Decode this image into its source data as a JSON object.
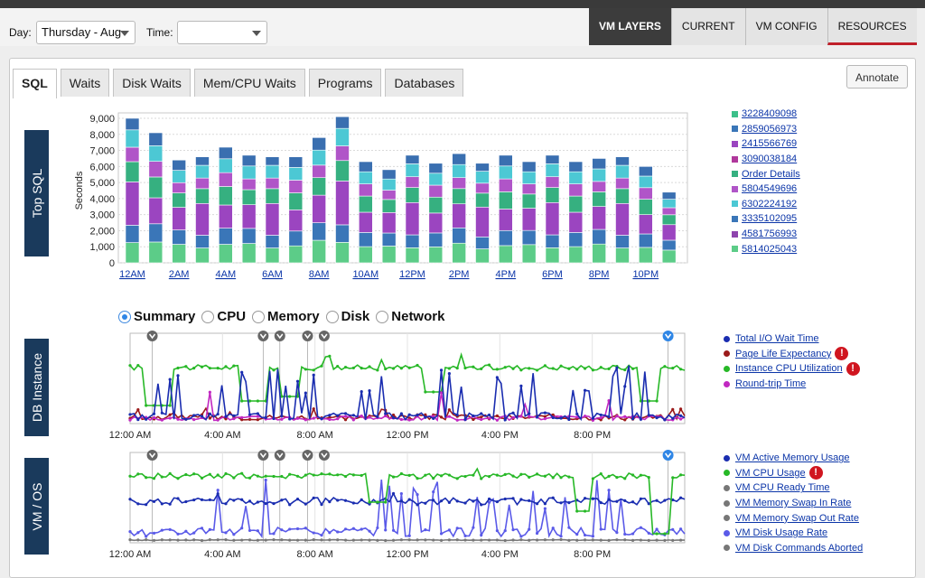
{
  "controls": {
    "day_label": "Day:",
    "day_value": "Thursday - Aug",
    "time_label": "Time:",
    "time_value": ""
  },
  "right_tabs": [
    {
      "label": "VM LAYERS"
    },
    {
      "label": "CURRENT"
    },
    {
      "label": "VM CONFIG"
    },
    {
      "label": "RESOURCES"
    }
  ],
  "tabs": [
    {
      "label": "SQL"
    },
    {
      "label": "Waits"
    },
    {
      "label": "Disk Waits"
    },
    {
      "label": "Mem/CPU Waits"
    },
    {
      "label": "Programs"
    },
    {
      "label": "Databases"
    }
  ],
  "annotate_label": "Annotate",
  "colors": {
    "accent_dark": "#1a3a5c",
    "link": "#0b35a8",
    "warning": "#d0151f",
    "active_tab_underline": "#c0202a"
  },
  "top_sql": {
    "side_label": "Top SQL",
    "legend": [
      {
        "label": "3228409098",
        "color": "#3cc08a"
      },
      {
        "label": "2859056973",
        "color": "#3a76b8"
      },
      {
        "label": "2415566769",
        "color": "#9b45c0"
      },
      {
        "label": "3090038184",
        "color": "#b0389c"
      },
      {
        "label": "Order Details",
        "color": "#36b080"
      },
      {
        "label": "5804549696",
        "color": "#b055c8"
      },
      {
        "label": "6302224192",
        "color": "#4cc8d4"
      },
      {
        "label": "3335102095",
        "color": "#3a76b8"
      },
      {
        "label": "4581756993",
        "color": "#8e44ad"
      },
      {
        "label": "5814025043",
        "color": "#5ccc88"
      }
    ]
  },
  "chart_data": [
    {
      "type": "bar",
      "ylabel": "Seconds",
      "ylim": [
        0,
        9000
      ],
      "yticks": [
        "9,000",
        "8,000",
        "7,000",
        "6,000",
        "5,000",
        "4,000",
        "3,000",
        "2,000",
        "1,000",
        "0"
      ],
      "xticks": [
        "12AM",
        "2AM",
        "4AM",
        "6AM",
        "8AM",
        "10AM",
        "12PM",
        "2PM",
        "4PM",
        "6PM",
        "8PM",
        "10PM"
      ],
      "totals": [
        9000,
        8100,
        6400,
        6600,
        7200,
        6700,
        6600,
        6600,
        7800,
        9100,
        6300,
        5800,
        6700,
        6200,
        6800,
        6200,
        6700,
        6300,
        6700,
        6300,
        6500,
        6600,
        6000,
        4400
      ],
      "series_colors": [
        "#5ccc88",
        "#3a76b8",
        "#9b45c0",
        "#36b080",
        "#b055c8",
        "#4cc8d4",
        "#3a6fb0",
        "#8e44ad",
        "#8fd06c"
      ]
    },
    {
      "type": "line",
      "side_label": "DB Instance",
      "xticks": [
        "12:00 AM",
        "4:00 AM",
        "8:00 AM",
        "12:00 PM",
        "4:00 PM",
        "8:00 PM"
      ],
      "series": [
        {
          "name": "Total I/O Wait Time",
          "color": "#1a2db0",
          "warning": false
        },
        {
          "name": "Page Life Expectancy",
          "color": "#9b1a1a",
          "warning": true
        },
        {
          "name": "Instance CPU Utilization",
          "color": "#27b827",
          "warning": true
        },
        {
          "name": "Round-trip Time",
          "color": "#c128c1",
          "warning": false
        }
      ]
    },
    {
      "type": "line",
      "side_label": "VM / OS",
      "xticks": [
        "12:00 AM",
        "4:00 AM",
        "8:00 AM",
        "12:00 PM",
        "4:00 PM",
        "8:00 PM"
      ],
      "series": [
        {
          "name": "VM Active Memory Usage",
          "color": "#1a2db0",
          "warning": false
        },
        {
          "name": "VM CPU Usage",
          "color": "#27b827",
          "warning": true
        },
        {
          "name": "VM CPU Ready Time",
          "color": "#777777",
          "warning": false
        },
        {
          "name": "VM Memory Swap In Rate",
          "color": "#777777",
          "warning": false
        },
        {
          "name": "VM Memory Swap Out Rate",
          "color": "#777777",
          "warning": false
        },
        {
          "name": "VM Disk Usage Rate",
          "color": "#5a5ae8",
          "warning": false
        },
        {
          "name": "VM Disk Commands Aborted",
          "color": "#777777",
          "warning": false
        }
      ]
    }
  ],
  "radios": [
    {
      "label": "Summary",
      "selected": true
    },
    {
      "label": "CPU",
      "selected": false
    },
    {
      "label": "Memory",
      "selected": false
    },
    {
      "label": "Disk",
      "selected": false
    },
    {
      "label": "Network",
      "selected": false
    }
  ]
}
